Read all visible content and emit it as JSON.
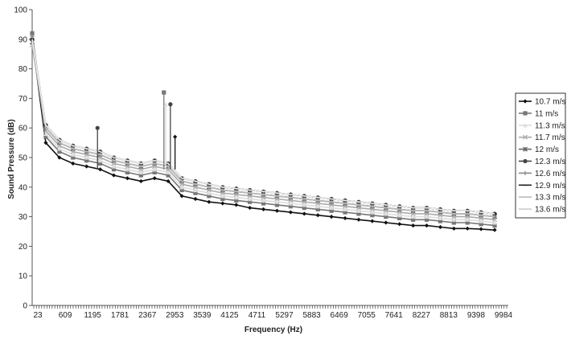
{
  "chart_data": {
    "type": "line",
    "title": "",
    "xlabel": "Frequency (Hz)",
    "ylabel": "Sound Pressure (dB)",
    "ylim": [
      0,
      100
    ],
    "yticks": [
      0,
      10,
      20,
      30,
      40,
      50,
      60,
      70,
      80,
      90,
      100
    ],
    "xlim": [
      23,
      10277
    ],
    "x_tick_labels": [
      "23",
      "609",
      "1195",
      "1781",
      "2367",
      "2953",
      "3539",
      "4125",
      "4711",
      "5297",
      "5883",
      "6469",
      "7055",
      "7641",
      "8227",
      "8813",
      "9398",
      "9984"
    ],
    "grid": false,
    "legend_position": "right",
    "x": [
      23,
      316,
      609,
      902,
      1195,
      1488,
      1781,
      2074,
      2367,
      2660,
      2953,
      3246,
      3539,
      3832,
      4125,
      4418,
      4711,
      5004,
      5297,
      5590,
      5883,
      6176,
      6469,
      6762,
      7055,
      7348,
      7641,
      7934,
      8227,
      8520,
      8813,
      9106,
      9398,
      9691,
      9984
    ],
    "series": [
      {
        "name": "10.7 m/s",
        "color": "#111111",
        "marker": "diamond",
        "values": [
          90,
          55,
          50,
          48,
          47,
          46,
          44,
          43,
          42,
          43,
          42,
          37,
          36,
          35,
          34.5,
          34,
          33,
          32.5,
          32,
          31.5,
          31,
          30.5,
          30,
          29.5,
          29,
          28.5,
          28,
          27.5,
          27,
          27,
          26.5,
          26,
          26,
          25.8,
          25.5
        ]
      },
      {
        "name": "11 m/s",
        "color": "#777777",
        "marker": "square",
        "values": [
          92,
          57,
          52,
          50,
          49,
          48,
          46,
          45,
          44,
          45,
          44,
          39,
          38,
          37,
          36,
          35.5,
          35,
          34.5,
          34,
          33.5,
          33,
          32.5,
          32,
          31.5,
          31,
          30.5,
          30,
          29.5,
          29,
          29,
          28.5,
          28,
          28,
          27.5,
          27
        ]
      },
      {
        "name": "11.3 m/s",
        "color": "#dddddd",
        "marker": "triangle",
        "values": [
          91,
          58,
          53,
          51,
          50,
          49,
          47,
          46,
          45,
          46,
          45,
          40,
          39,
          38,
          37,
          36.5,
          36,
          35.5,
          35,
          34.5,
          34,
          33.5,
          33,
          32.5,
          32,
          31.5,
          31,
          30.5,
          30,
          30,
          29.5,
          29,
          29,
          28.5,
          28
        ]
      },
      {
        "name": "11.7 m/s",
        "color": "#aaaaaa",
        "marker": "x",
        "values": [
          88,
          59,
          54,
          52,
          51,
          50,
          48,
          47,
          46,
          47,
          46,
          41,
          40,
          39,
          38,
          37.5,
          37,
          36.5,
          36,
          35.5,
          35,
          34.5,
          34,
          33.5,
          33,
          32.5,
          32,
          31.5,
          31,
          31,
          30.5,
          30,
          30,
          29.5,
          29
        ]
      },
      {
        "name": "12 m/s",
        "color": "#666666",
        "marker": "star",
        "values": [
          89,
          60,
          55,
          53,
          52,
          51,
          49,
          48,
          47,
          48,
          47,
          42,
          41,
          40,
          39,
          38.5,
          38,
          37.5,
          37,
          36.5,
          36,
          35.5,
          35,
          34.5,
          34,
          33.5,
          33,
          32.5,
          32,
          32,
          31.5,
          31,
          31,
          30.5,
          30
        ]
      },
      {
        "name": "12.3 m/s",
        "color": "#444444",
        "marker": "circle",
        "values": [
          90,
          61,
          56,
          54,
          53,
          52,
          50,
          49,
          48,
          49,
          48,
          43,
          42,
          41,
          40,
          39.5,
          39,
          38.5,
          38,
          37.5,
          37,
          36.5,
          36,
          35.5,
          35,
          34.5,
          34,
          33.5,
          33,
          33,
          32.5,
          32,
          32,
          31.5,
          31
        ]
      },
      {
        "name": "12.6 m/s",
        "color": "#888888",
        "marker": "plus",
        "values": [
          91,
          60,
          55,
          53,
          52,
          51,
          49,
          48,
          47,
          48,
          47,
          42,
          41,
          40,
          39,
          38.5,
          38,
          37.5,
          37,
          36.5,
          36,
          35.5,
          35,
          34.5,
          34,
          33.5,
          33,
          32.5,
          32,
          32,
          31.5,
          31,
          31,
          30.5,
          30
        ]
      },
      {
        "name": "12.9 m/s",
        "color": "#222222",
        "marker": "dash",
        "values": [
          90,
          61,
          56,
          54,
          53,
          52,
          50,
          49,
          48,
          49,
          48,
          43,
          42,
          41,
          40,
          39.5,
          39,
          38.5,
          38,
          37.5,
          37,
          36.5,
          36,
          35.5,
          35,
          34.5,
          34,
          33.5,
          33,
          33,
          32.5,
          32,
          32,
          31.5,
          31
        ]
      },
      {
        "name": "13.3 m/s",
        "color": "#bbbbbb",
        "marker": "none",
        "values": [
          89,
          60,
          55,
          53,
          52,
          51,
          49,
          48,
          47,
          48,
          47,
          42,
          41,
          40,
          39,
          38.5,
          38,
          37.5,
          37,
          36.5,
          36,
          35.5,
          35,
          34.5,
          34,
          33.5,
          33,
          32.5,
          32,
          32,
          31.5,
          31,
          31,
          30.5,
          30
        ]
      },
      {
        "name": "13.6 m/s",
        "color": "#eeeeee",
        "marker": "none",
        "values": [
          90,
          61,
          56,
          54,
          53,
          52,
          50,
          49,
          48,
          49,
          48,
          43,
          42,
          41,
          40,
          39.5,
          39,
          38.5,
          38,
          37.5,
          37,
          36.5,
          36,
          35.5,
          35,
          34.5,
          34,
          33.5,
          33,
          33,
          32.5,
          32,
          32,
          31.5,
          31
        ]
      }
    ],
    "annotations_peaks": [
      {
        "x": 1430,
        "series": "12.3 m/s",
        "y": 60
      },
      {
        "x": 2860,
        "series": "11 m/s",
        "y": 72
      },
      {
        "x": 2900,
        "series": "11.3 m/s",
        "y": 68
      },
      {
        "x": 3000,
        "series": "12.3 m/s",
        "y": 68
      },
      {
        "x": 3100,
        "series": "10.7 m/s",
        "y": 57
      }
    ]
  }
}
